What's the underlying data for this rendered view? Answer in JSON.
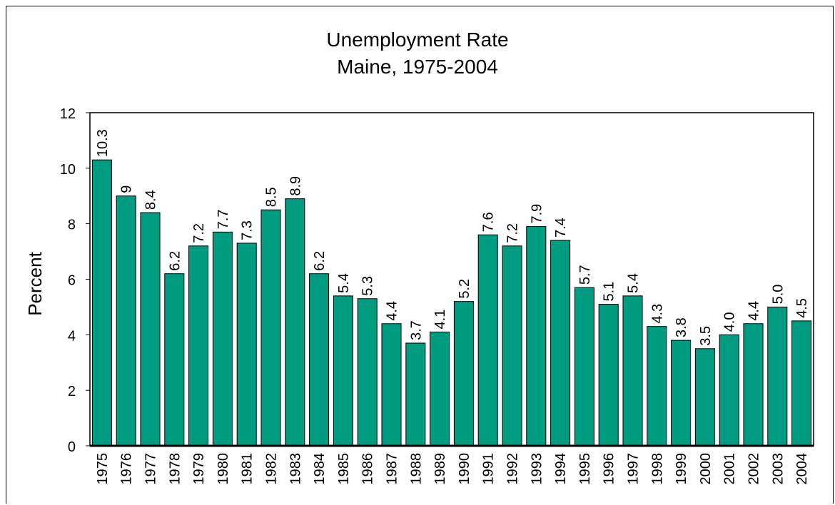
{
  "chart_data": {
    "type": "bar",
    "title": "Unemployment Rate",
    "subtitle": "Maine, 1975-2004",
    "xlabel": "",
    "ylabel": "Percent",
    "ylim": [
      0,
      12
    ],
    "yticks": [
      0,
      2,
      4,
      6,
      8,
      10,
      12
    ],
    "grid": false,
    "legend": "none",
    "bar_color": "#009C82",
    "categories": [
      "1975",
      "1976",
      "1977",
      "1978",
      "1979",
      "1980",
      "1981",
      "1982",
      "1983",
      "1984",
      "1985",
      "1986",
      "1987",
      "1988",
      "1989",
      "1990",
      "1991",
      "1992",
      "1993",
      "1994",
      "1995",
      "1996",
      "1997",
      "1998",
      "1999",
      "2000",
      "2001",
      "2002",
      "2003",
      "2004"
    ],
    "values": [
      10.3,
      9,
      8.4,
      6.2,
      7.2,
      7.7,
      7.3,
      8.5,
      8.9,
      6.2,
      5.4,
      5.3,
      4.4,
      3.7,
      4.1,
      5.2,
      7.6,
      7.2,
      7.9,
      7.4,
      5.7,
      5.1,
      5.4,
      4.3,
      3.8,
      3.5,
      4.0,
      4.4,
      5.0,
      4.5
    ],
    "data_labels": [
      "10.3",
      "9",
      "8.4",
      "6.2",
      "7.2",
      "7.7",
      "7.3",
      "8.5",
      "8.9",
      "6.2",
      "5.4",
      "5.3",
      "4.4",
      "3.7",
      "4.1",
      "5.2",
      "7.6",
      "7.2",
      "7.9",
      "7.4",
      "5.7",
      "5.1",
      "5.4",
      "4.3",
      "3.8",
      "3.5",
      "4.0",
      "4.4",
      "5.0",
      "4.5"
    ]
  }
}
